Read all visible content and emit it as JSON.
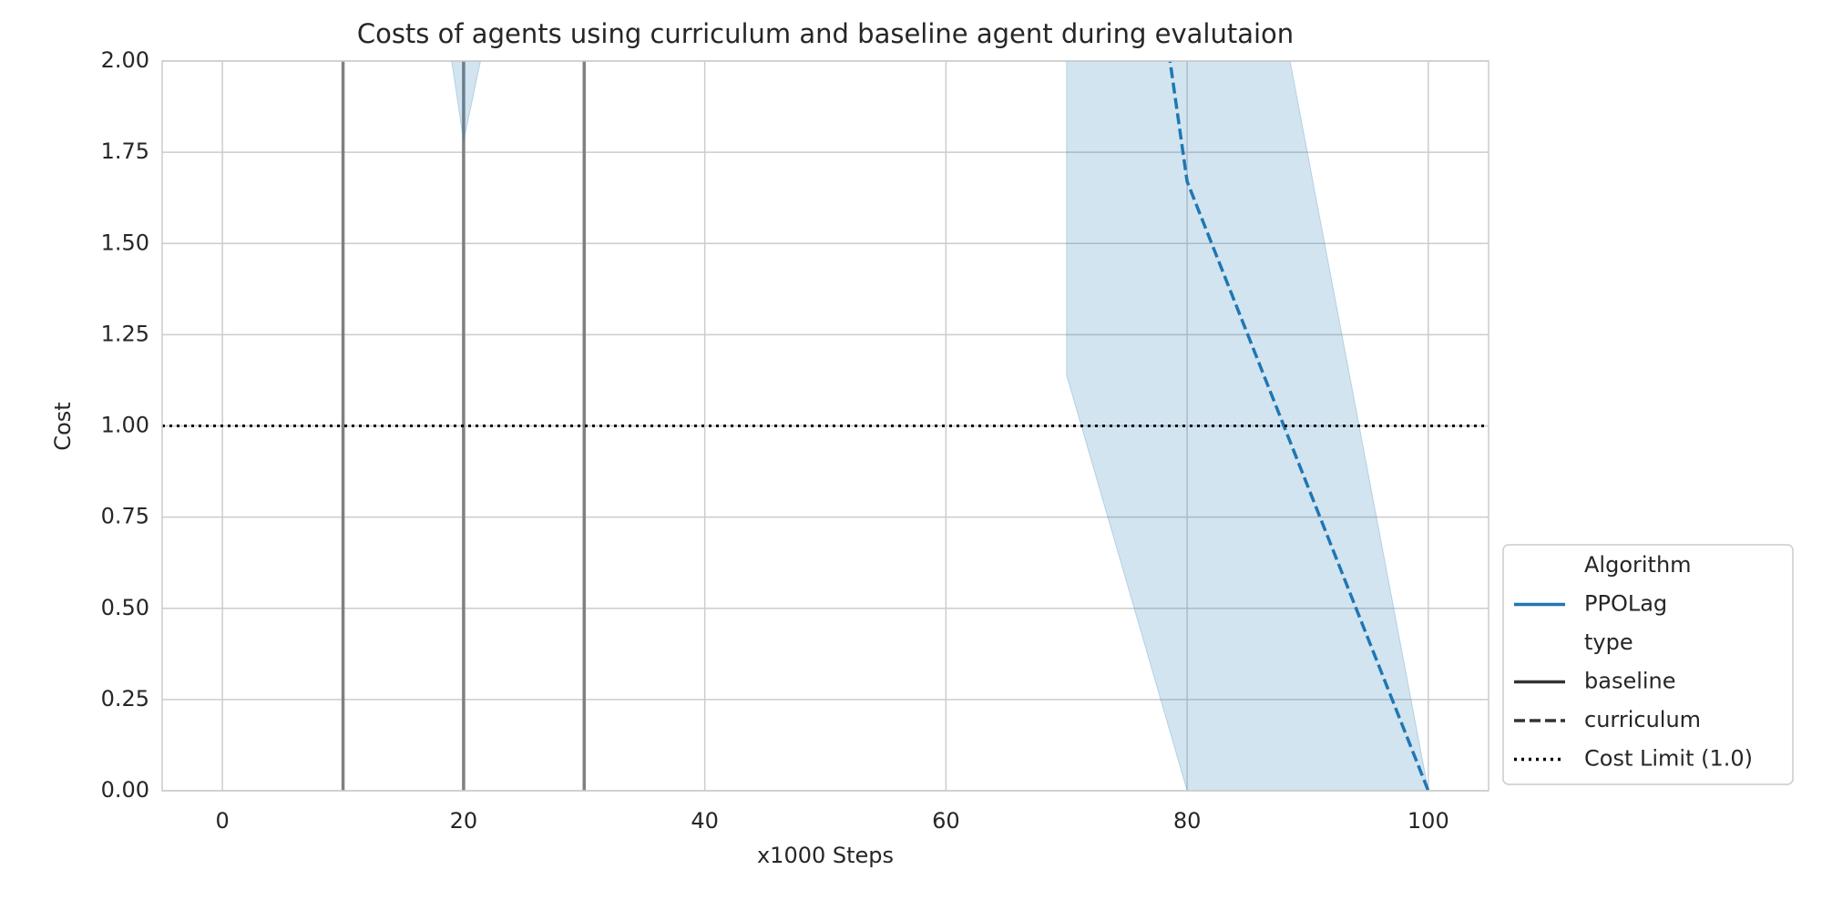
{
  "chart_data": {
    "type": "line",
    "title": "Costs of agents using curriculum and baseline agent during evalutaion",
    "xlabel": "x1000 Steps",
    "ylabel": "Cost",
    "xlim": [
      -5,
      105
    ],
    "ylim": [
      0,
      2
    ],
    "xticks": [
      0,
      20,
      40,
      60,
      80,
      100
    ],
    "yticks": [
      {
        "value": 0,
        "label": "0.00"
      },
      {
        "value": 0.25,
        "label": "0.25"
      },
      {
        "value": 0.5,
        "label": "0.50"
      },
      {
        "value": 0.75,
        "label": "0.75"
      },
      {
        "value": 1,
        "label": "1.00"
      },
      {
        "value": 1.25,
        "label": "1.25"
      },
      {
        "value": 1.5,
        "label": "1.50"
      },
      {
        "value": 1.75,
        "label": "1.75"
      },
      {
        "value": 2,
        "label": "2.00"
      }
    ],
    "grid": true,
    "vlines": {
      "x": [
        10,
        20,
        30
      ],
      "color": "#808080"
    },
    "hline": {
      "value": 1.0,
      "label": "Cost Limit (1.0)",
      "color": "#000000",
      "style": "dotted"
    },
    "legend": {
      "position": "lower right",
      "hue_title": "Algorithm",
      "hue_entries": [
        {
          "name": "PPOLag",
          "color": "#1f77b4"
        }
      ],
      "style_title": "type",
      "style_entries": [
        {
          "name": "baseline",
          "style": "solid"
        },
        {
          "name": "curriculum",
          "style": "dashed"
        }
      ]
    },
    "series": [
      {
        "name": "baseline",
        "color": "#1f77b4",
        "style": "solid",
        "x": [
          10,
          20,
          30
        ],
        "values": [
          null,
          null,
          null
        ],
        "band_lower": [
          4.0,
          1.78,
          3.35
        ],
        "band_upper": [
          null,
          null,
          null
        ]
      },
      {
        "name": "curriculum",
        "color": "#1f77b4",
        "style": "dashed",
        "x": [
          70,
          80,
          100
        ],
        "values": [
          4.0,
          1.67,
          0
        ],
        "band_lower": [
          1.14,
          0,
          0
        ],
        "band_upper": [
          5.3,
          3.49,
          0
        ]
      }
    ]
  }
}
